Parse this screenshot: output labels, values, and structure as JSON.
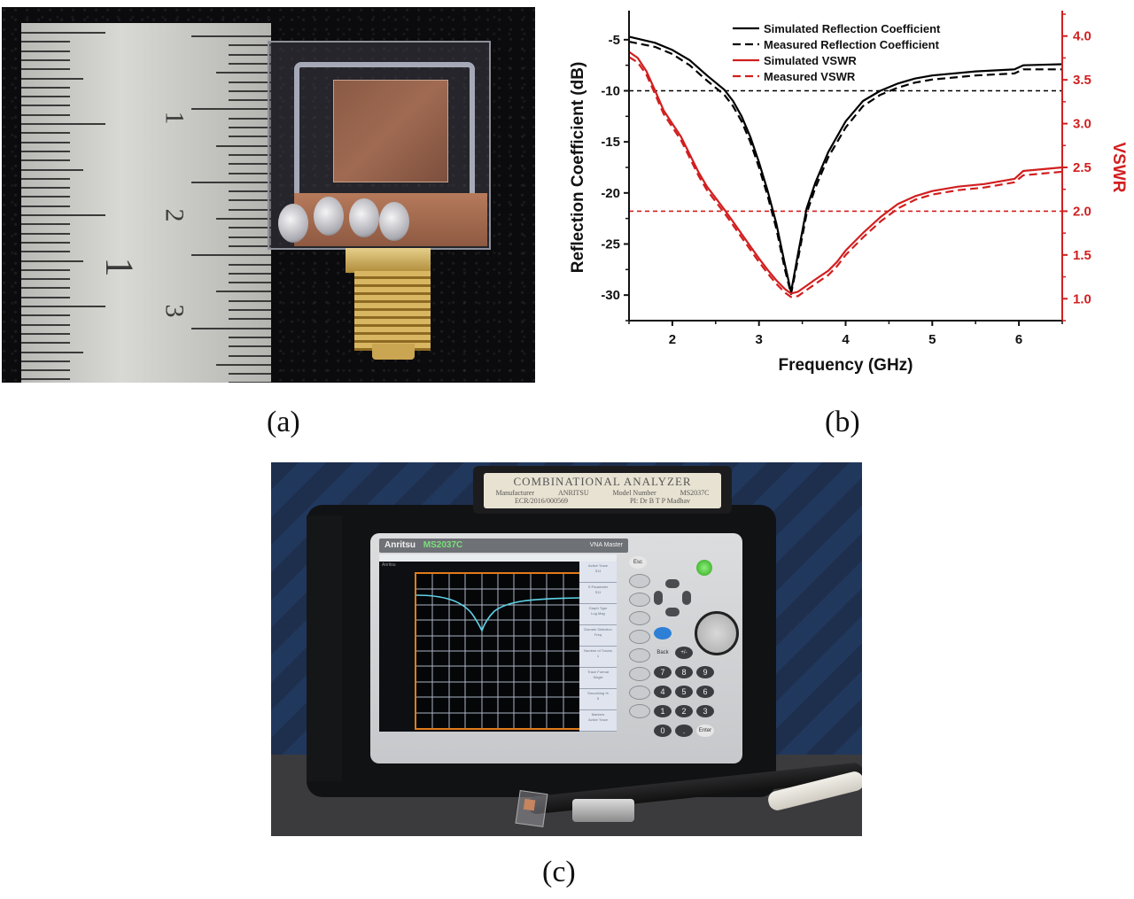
{
  "figure": {
    "panels": [
      {
        "id": "a",
        "caption": "(a)",
        "description": "Fabricated antenna prototype beside a metal ruler with SMA connector"
      },
      {
        "id": "b",
        "caption": "(b)",
        "description": "Simulated and measured reflection coefficient and VSWR vs frequency"
      },
      {
        "id": "c",
        "caption": "(c)",
        "description": "Antenna measurement setup with combinational analyzer"
      }
    ]
  },
  "photo_a": {
    "ruler_numbers": [
      "1",
      "2",
      "3"
    ],
    "ruler_large_mark": "1",
    "colors": {
      "background": "#0b0b0d",
      "copper": "#9a6650",
      "substrate_outline": "#a6aab8",
      "sma_gold": "#d1ad55"
    }
  },
  "photo_c": {
    "label": {
      "title": "COMBINATIONAL ANALYZER",
      "manufacturer_label": "Manufacturer",
      "manufacturer": "ANRITSU",
      "model_label": "Model Number",
      "model": "MS2037C",
      "id": "ECR/2016/000569",
      "pi": "PI: Dr B T P Madhav"
    },
    "instrument": {
      "brand": "Anritsu",
      "model": "MS2037C",
      "series": "VNA Master",
      "screen_brand": "Anritsu"
    },
    "softkeys": [
      {
        "title": "Active Trace",
        "value": "S11"
      },
      {
        "title": "S Parameter",
        "value": "S11"
      },
      {
        "title": "Graph Type",
        "value": "Log Mag"
      },
      {
        "title": "Domain Selection",
        "value": "Freq"
      },
      {
        "title": "Number of Traces",
        "value": "1"
      },
      {
        "title": "Trace Format",
        "value": "Single"
      },
      {
        "title": "Smoothing %",
        "value": "5"
      },
      {
        "title": "Markers",
        "value": "Active Trace"
      }
    ],
    "keypad": {
      "esc": "Esc",
      "back": "Back",
      "plus_minus": "+/-",
      "enter": "Enter",
      "digits": [
        "7",
        "8",
        "9",
        "4",
        "5",
        "6",
        "1",
        "2",
        "3",
        "0",
        "."
      ]
    },
    "trace_color": "#5fd3e6",
    "plot_border_color": "#e07b1a"
  },
  "chart_data": {
    "type": "line",
    "title": "",
    "xlabel": "Frequency (GHz)",
    "ylabel": "Reflection Coefficient (dB)",
    "y2label": "VSWR",
    "xlim": [
      1.5,
      6.5
    ],
    "ylim": [
      -32.5,
      -2.5
    ],
    "y2lim": [
      0.75,
      4.25
    ],
    "x_ticks": [
      "2",
      "3",
      "4",
      "5",
      "6"
    ],
    "y_ticks": [
      "-5",
      "-10",
      "-15",
      "-20",
      "-25",
      "-30"
    ],
    "y2_ticks": [
      "1.0",
      "1.5",
      "2.0",
      "2.5",
      "3.0",
      "3.5",
      "4.0"
    ],
    "grid": false,
    "legend_position": "upper center",
    "legend": [
      "Simulated Reflection Coefficient",
      "Measured Reflection Coefficient",
      "Simulated VSWR",
      "Measured VSWR"
    ],
    "reference_lines": [
      {
        "axis": "y",
        "value": -10,
        "style": "dashed",
        "color": "#000000"
      },
      {
        "axis": "y2",
        "value": 2.0,
        "style": "dashed",
        "color": "#d11f1f"
      }
    ],
    "series": [
      {
        "name": "Simulated Reflection Coefficient",
        "axis": "y",
        "style": "solid",
        "color": "#000000",
        "x": [
          1.5,
          1.8,
          2.0,
          2.2,
          2.4,
          2.6,
          2.7,
          2.8,
          2.9,
          3.0,
          3.1,
          3.2,
          3.3,
          3.37,
          3.45,
          3.55,
          3.65,
          3.8,
          4.0,
          4.2,
          4.4,
          4.6,
          4.8,
          5.0,
          5.5,
          5.95,
          6.05,
          6.5
        ],
        "values": [
          -4.7,
          -5.3,
          -6.0,
          -7.0,
          -8.5,
          -9.9,
          -11.0,
          -12.5,
          -14.5,
          -17.0,
          -19.8,
          -23.0,
          -27.0,
          -29.7,
          -26.0,
          -21.5,
          -19.0,
          -16.0,
          -13.0,
          -11.0,
          -10.0,
          -9.3,
          -8.8,
          -8.5,
          -8.1,
          -7.9,
          -7.5,
          -7.4
        ]
      },
      {
        "name": "Measured Reflection Coefficient",
        "axis": "y",
        "style": "dashed",
        "color": "#000000",
        "x": [
          1.5,
          1.8,
          2.0,
          2.2,
          2.4,
          2.6,
          2.7,
          2.8,
          2.9,
          3.0,
          3.1,
          3.2,
          3.3,
          3.37,
          3.45,
          3.55,
          3.65,
          3.8,
          4.0,
          4.2,
          4.4,
          4.6,
          4.8,
          5.0,
          5.5,
          5.95,
          6.05,
          6.5
        ],
        "values": [
          -5.2,
          -5.7,
          -6.4,
          -7.5,
          -9.0,
          -10.4,
          -11.5,
          -13.0,
          -15.0,
          -17.5,
          -20.3,
          -23.5,
          -27.5,
          -29.9,
          -26.5,
          -22.0,
          -19.5,
          -16.5,
          -13.6,
          -11.5,
          -10.4,
          -9.7,
          -9.2,
          -8.9,
          -8.5,
          -8.3,
          -7.9,
          -7.9
        ]
      },
      {
        "name": "Simulated VSWR",
        "axis": "y2",
        "style": "solid",
        "color": "#d11f1f",
        "x": [
          1.5,
          1.6,
          1.7,
          1.8,
          1.9,
          2.0,
          2.1,
          2.2,
          2.3,
          2.4,
          2.5,
          2.6,
          2.7,
          2.8,
          2.9,
          3.0,
          3.1,
          3.2,
          3.3,
          3.37,
          3.45,
          3.55,
          3.65,
          3.8,
          3.9,
          4.0,
          4.2,
          4.4,
          4.6,
          4.8,
          5.0,
          5.3,
          5.6,
          5.95,
          6.05,
          6.5
        ],
        "values": [
          3.82,
          3.75,
          3.6,
          3.38,
          3.15,
          3.0,
          2.85,
          2.65,
          2.45,
          2.28,
          2.15,
          2.02,
          1.88,
          1.74,
          1.6,
          1.46,
          1.33,
          1.21,
          1.11,
          1.06,
          1.08,
          1.15,
          1.22,
          1.32,
          1.42,
          1.55,
          1.75,
          1.93,
          2.08,
          2.17,
          2.23,
          2.28,
          2.31,
          2.37,
          2.46,
          2.5
        ]
      },
      {
        "name": "Measured VSWR",
        "axis": "y2",
        "style": "dashed",
        "color": "#d11f1f",
        "x": [
          1.5,
          1.6,
          1.7,
          1.8,
          1.9,
          2.0,
          2.1,
          2.2,
          2.3,
          2.4,
          2.5,
          2.6,
          2.7,
          2.8,
          2.9,
          3.0,
          3.1,
          3.2,
          3.3,
          3.37,
          3.45,
          3.55,
          3.65,
          3.8,
          3.9,
          4.0,
          4.2,
          4.4,
          4.6,
          4.8,
          5.0,
          5.3,
          5.6,
          5.95,
          6.05,
          6.5
        ],
        "values": [
          3.76,
          3.7,
          3.56,
          3.34,
          3.11,
          2.96,
          2.81,
          2.61,
          2.41,
          2.24,
          2.11,
          1.98,
          1.84,
          1.7,
          1.56,
          1.42,
          1.29,
          1.17,
          1.07,
          1.02,
          1.03,
          1.1,
          1.17,
          1.27,
          1.37,
          1.5,
          1.7,
          1.88,
          2.03,
          2.13,
          2.19,
          2.24,
          2.27,
          2.33,
          2.41,
          2.45
        ]
      }
    ]
  }
}
